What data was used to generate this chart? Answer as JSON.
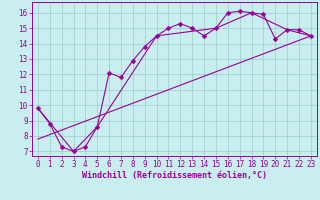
{
  "xlabel": "Windchill (Refroidissement éolien,°C)",
  "xlim": [
    -0.5,
    23.5
  ],
  "ylim": [
    6.7,
    16.7
  ],
  "yticks": [
    7,
    8,
    9,
    10,
    11,
    12,
    13,
    14,
    15,
    16
  ],
  "xticks": [
    0,
    1,
    2,
    3,
    4,
    5,
    6,
    7,
    8,
    9,
    10,
    11,
    12,
    13,
    14,
    15,
    16,
    17,
    18,
    19,
    20,
    21,
    22,
    23
  ],
  "bg_color": "#c8eef0",
  "line_color": "#990099",
  "grid_color": "#99cccc",
  "line1_x": [
    0,
    1,
    2,
    3,
    4,
    5,
    6,
    7,
    8,
    9,
    10,
    11,
    12,
    13,
    14,
    15,
    16,
    17,
    18,
    19,
    20,
    21,
    22,
    23
  ],
  "line1_y": [
    9.8,
    8.8,
    7.3,
    7.0,
    7.3,
    8.6,
    12.1,
    11.8,
    12.9,
    13.8,
    14.5,
    15.0,
    15.3,
    15.0,
    14.5,
    15.0,
    16.0,
    16.1,
    16.0,
    15.9,
    14.3,
    14.9,
    14.9,
    14.5
  ],
  "line2_x": [
    0,
    3,
    5,
    10,
    15,
    18,
    21,
    23
  ],
  "line2_y": [
    9.8,
    7.0,
    8.6,
    14.5,
    15.0,
    16.0,
    14.9,
    14.5
  ],
  "line3_x": [
    0,
    23
  ],
  "line3_y": [
    7.8,
    14.5
  ],
  "markersize": 2.5,
  "linewidth": 0.8,
  "xlabel_fontsize": 6,
  "tick_fontsize": 5.5
}
